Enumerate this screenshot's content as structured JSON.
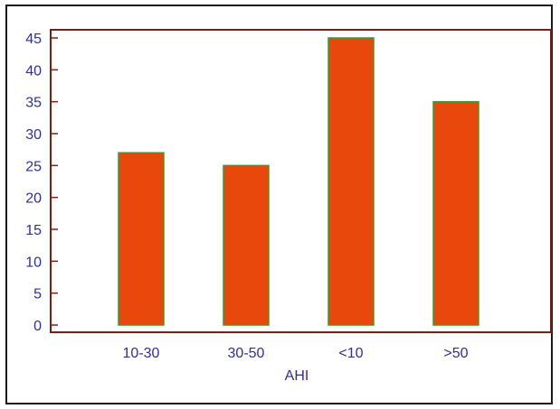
{
  "chart_data": {
    "type": "bar",
    "categories": [
      "10-30",
      "30-50",
      "<10",
      ">50"
    ],
    "values": [
      27,
      25,
      45,
      35
    ],
    "title": "",
    "xlabel": "AHI",
    "ylabel": "",
    "ylim": [
      0,
      45
    ],
    "yticks": [
      0,
      5,
      10,
      15,
      20,
      25,
      30,
      35,
      40,
      45
    ],
    "grid": false,
    "legend": "none",
    "colors": {
      "bar_fill": "#e8480c",
      "bar_stroke": "#3a9a2a",
      "plot_frame": "#7a1f14",
      "label_text": "#2e2e99"
    }
  }
}
